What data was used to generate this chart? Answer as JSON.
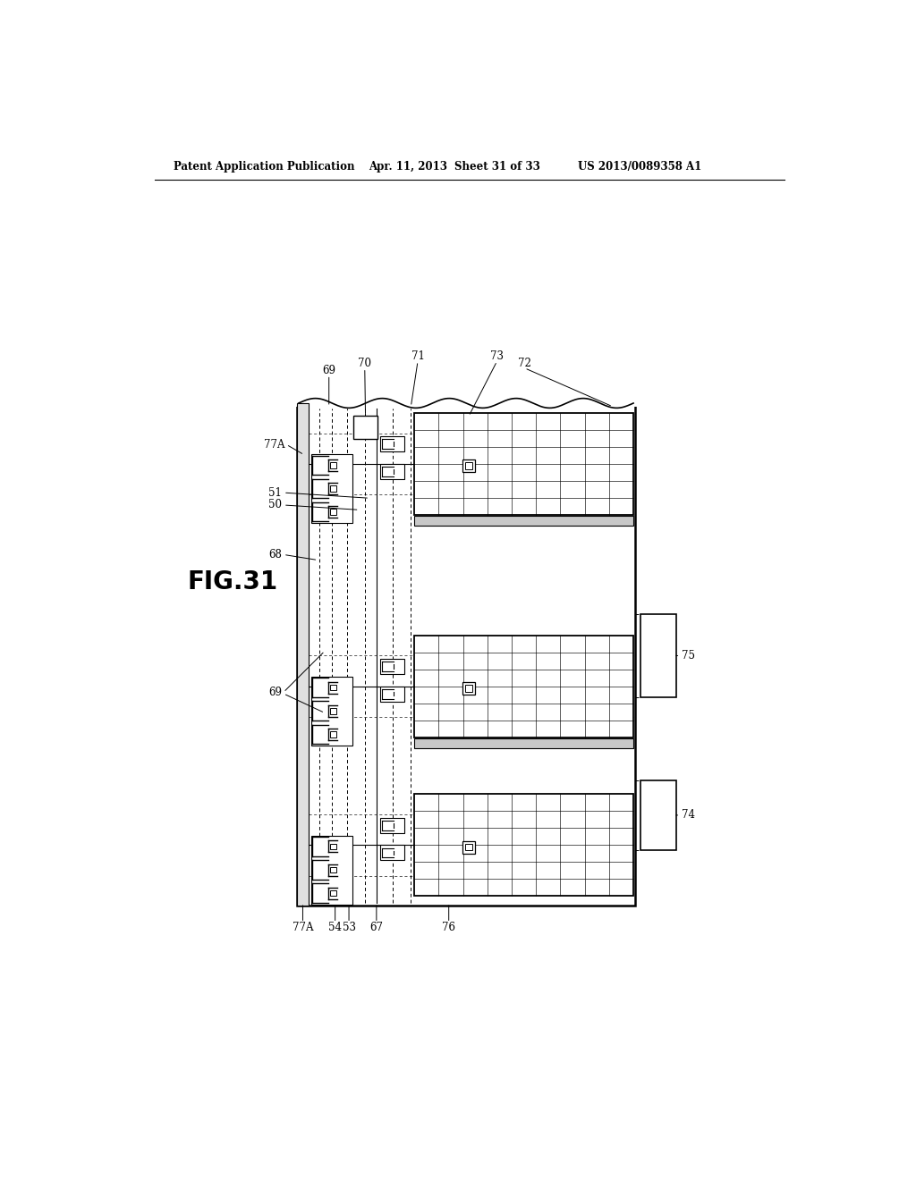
{
  "bg_color": "#ffffff",
  "header_text": "Patent Application Publication",
  "header_date": "Apr. 11, 2013",
  "header_sheet": "Sheet 31 of 33",
  "header_patent": "US 2013/0089358 A1",
  "fig_label": "FIG.31",
  "lc": "#000000",
  "gray1": "#b0b0b0",
  "gray2": "#d8d8d8",
  "gray3": "#909090"
}
